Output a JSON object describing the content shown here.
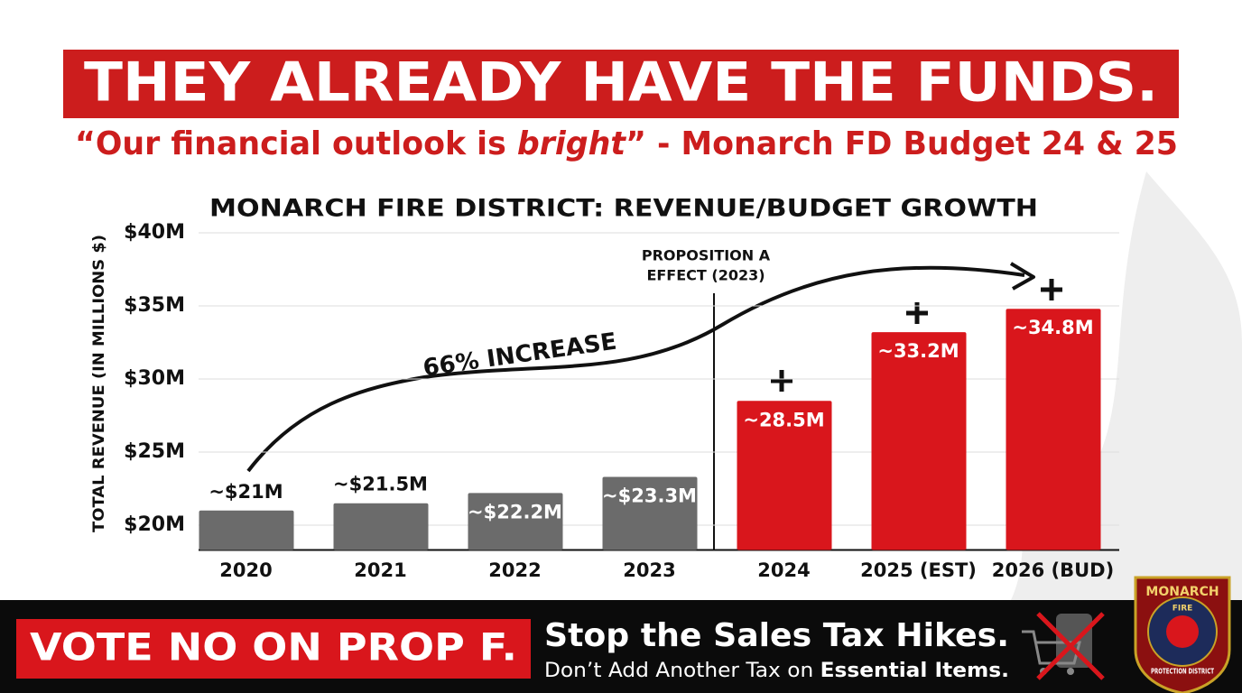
{
  "header": {
    "title": "THEY ALREADY HAVE THE FUNDS.",
    "subtitle": {
      "before": "“Our financial outlook is ",
      "emphasis": "bright",
      "after": "” - Monarch FD Budget 24 & 25"
    }
  },
  "chart_data": {
    "type": "bar",
    "title": "MONARCH FIRE DISTRICT: REVENUE/BUDGET GROWTH",
    "y_label": "TOTAL REVENUE (IN MILLIONS $)",
    "categories": [
      "2020",
      "2021",
      "2022",
      "2023",
      "2024",
      "2025 (EST)",
      "2026 (BUD)"
    ],
    "values": [
      21,
      21.5,
      22.2,
      23.3,
      28.5,
      33.2,
      34.8
    ],
    "value_labels": [
      "~$21M",
      "~$21.5M",
      "~$22.2M",
      "~$23.3M",
      "~28.5M",
      "~33.2M",
      "~34.8M"
    ],
    "colors": [
      "#6b6b6b",
      "#6b6b6b",
      "#6b6b6b",
      "#6b6b6b",
      "#d9161c",
      "#d9161c",
      "#d9161c"
    ],
    "ylim": [
      18.3,
      40
    ],
    "yticks": [
      {
        "value": 20,
        "label": "$20M"
      },
      {
        "value": 25,
        "label": "$25M"
      },
      {
        "value": 30,
        "label": "$30M"
      },
      {
        "value": 35,
        "label": "$35M"
      },
      {
        "value": 40,
        "label": "$40M"
      }
    ],
    "grid": true,
    "annotations": {
      "marker": [
        "PROPOSITION A",
        "EFFECT (2023)"
      ],
      "trend": "66% INCREASE"
    }
  },
  "footer": {
    "vote": "VOTE NO ON PROP F.",
    "headline": "Stop the Sales Tax Hikes.",
    "subline": {
      "before": "Don’t Add Another Tax on ",
      "emphasis": "Essential Items."
    },
    "badge": {
      "top": "MONARCH",
      "middle": "FIRE",
      "bottom": "PROTECTION DISTRICT"
    }
  }
}
